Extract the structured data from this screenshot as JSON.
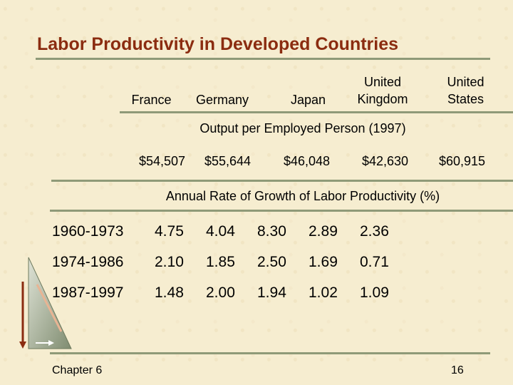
{
  "title": "Labor Productivity in Developed Countries",
  "countries": [
    "France",
    "Germany",
    "Japan",
    "United Kingdom",
    "United States"
  ],
  "output_section_label": "Output per Employed Person (1997)",
  "output_values": [
    "$54,507",
    "$55,644",
    "$46,048",
    "$42,630",
    "$60,915"
  ],
  "growth_section_label": "Annual Rate of Growth of Labor Productivity (%)",
  "growth_rows": [
    {
      "period": "1960-1973",
      "values": [
        "4.75",
        "4.04",
        "8.30",
        "2.89",
        "2.36"
      ]
    },
    {
      "period": "1974-1986",
      "values": [
        "2.10",
        "1.85",
        "2.50",
        "1.69",
        "0.71"
      ]
    },
    {
      "period": "1987-1997",
      "values": [
        "1.48",
        "2.00",
        "1.94",
        "1.02",
        "1.09"
      ]
    }
  ],
  "footer": {
    "chapter": "Chapter 6",
    "page": "16"
  },
  "colors": {
    "title": "#8b2c10",
    "rule": "#8f9a78",
    "background": "#f6edd0"
  }
}
